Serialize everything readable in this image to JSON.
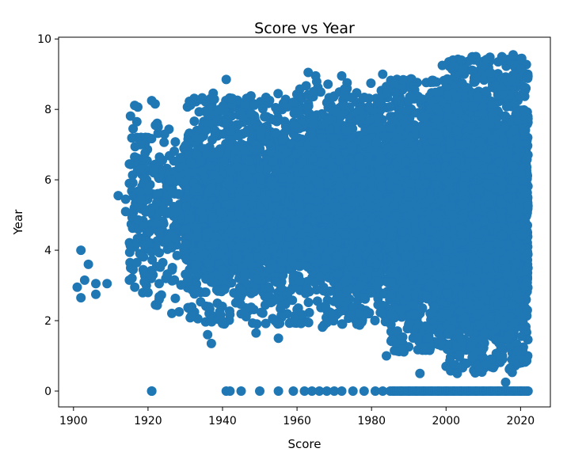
{
  "chart_data": {
    "type": "scatter",
    "title": "Score vs Year",
    "xlabel": "Score",
    "ylabel": "Year",
    "xlim": [
      1896,
      2028
    ],
    "ylim": [
      -0.45,
      10.05
    ],
    "x_ticks": [
      1900,
      1920,
      1940,
      1960,
      1980,
      2000,
      2020
    ],
    "y_ticks": [
      0,
      2,
      4,
      6,
      8,
      10
    ],
    "grid": false,
    "legend": "none",
    "marker_color": "#1f77b4",
    "points": [
      {
        "x": 1901,
        "y": 2.95
      },
      {
        "x": 1902,
        "y": 2.65
      },
      {
        "x": 1902,
        "y": 4.0
      },
      {
        "x": 1903,
        "y": 3.15
      },
      {
        "x": 1904,
        "y": 3.6
      },
      {
        "x": 1906,
        "y": 3.05
      },
      {
        "x": 1906,
        "y": 2.75
      },
      {
        "x": 1909,
        "y": 3.05
      },
      {
        "x": 1912,
        "y": 5.55
      },
      {
        "x": 1914,
        "y": 5.1
      },
      {
        "x": 1914,
        "y": 5.45
      },
      {
        "x": 1915,
        "y": 3.15
      },
      {
        "x": 1915,
        "y": 6.45
      },
      {
        "x": 1915,
        "y": 5.9
      },
      {
        "x": 1916,
        "y": 7.45
      },
      {
        "x": 1916,
        "y": 3.45
      },
      {
        "x": 1917,
        "y": 7.65
      },
      {
        "x": 1917,
        "y": 3.65
      },
      {
        "x": 1918,
        "y": 6.3
      },
      {
        "x": 1918,
        "y": 5.45
      },
      {
        "x": 1918,
        "y": 7.0
      },
      {
        "x": 1919,
        "y": 3.1
      },
      {
        "x": 1919,
        "y": 4.15
      },
      {
        "x": 1920,
        "y": 2.8
      },
      {
        "x": 1920,
        "y": 5.7
      },
      {
        "x": 1920,
        "y": 7.2
      },
      {
        "x": 1921,
        "y": 8.25
      },
      {
        "x": 1921,
        "y": 3.95
      },
      {
        "x": 1922,
        "y": 2.45
      },
      {
        "x": 1922,
        "y": 7.55
      },
      {
        "x": 1923,
        "y": 3.05
      },
      {
        "x": 1923,
        "y": 2.6
      },
      {
        "x": 1924,
        "y": 5.1
      },
      {
        "x": 1921,
        "y": 0.0
      },
      {
        "x": 1941,
        "y": 8.85
      },
      {
        "x": 1965,
        "y": 8.95
      },
      {
        "x": 1963,
        "y": 9.05
      },
      {
        "x": 1972,
        "y": 8.95
      },
      {
        "x": 1983,
        "y": 9.0
      },
      {
        "x": 1999,
        "y": 9.25
      },
      {
        "x": 1936,
        "y": 1.6
      },
      {
        "x": 1937,
        "y": 1.35
      },
      {
        "x": 1949,
        "y": 1.65
      },
      {
        "x": 1955,
        "y": 1.5
      },
      {
        "x": 1984,
        "y": 1.0
      },
      {
        "x": 1993,
        "y": 0.5
      },
      {
        "x": 2003,
        "y": 0.5
      },
      {
        "x": 2018,
        "y": 9.55
      },
      {
        "x": 2014,
        "y": 9.35
      },
      {
        "x": 2010,
        "y": 9.25
      },
      {
        "x": 2016,
        "y": 0.25
      }
    ],
    "zero_band": {
      "y": 0,
      "x_points": [
        1921,
        1941,
        1942,
        1945,
        1950,
        1955,
        1959,
        1962,
        1964,
        1966,
        1968,
        1970,
        1972,
        1975,
        1978,
        1981,
        1983,
        1986,
        1988,
        1990,
        1992,
        1994,
        1996,
        1998,
        2000,
        2002,
        2004,
        2006,
        2008,
        2010,
        2012,
        2014,
        2016,
        2018,
        2020,
        2022
      ]
    },
    "density_bands": [
      {
        "x_from": 1915,
        "x_to": 1930,
        "y_low": 2.2,
        "y_high": 8.2,
        "count": 200
      },
      {
        "x_from": 1930,
        "x_to": 1960,
        "y_low": 1.9,
        "y_high": 8.5,
        "count": 1500
      },
      {
        "x_from": 1960,
        "x_to": 1985,
        "y_low": 1.8,
        "y_high": 8.8,
        "count": 1500
      },
      {
        "x_from": 1985,
        "x_to": 2000,
        "y_low": 1.1,
        "y_high": 8.9,
        "count": 1500
      },
      {
        "x_from": 2000,
        "x_to": 2022,
        "y_low": 0.5,
        "y_high": 9.5,
        "count": 3000
      }
    ]
  }
}
